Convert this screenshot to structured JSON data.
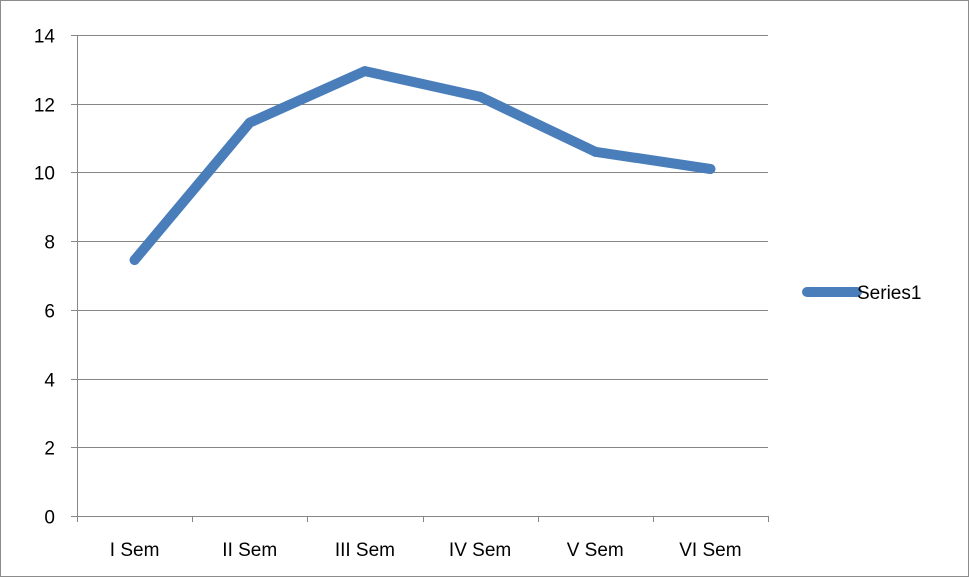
{
  "chart_data": {
    "type": "line",
    "categories": [
      "I Sem",
      "II Sem",
      "III Sem",
      "IV Sem",
      "V Sem",
      "VI Sem"
    ],
    "series": [
      {
        "name": "Series1",
        "values": [
          7.45,
          11.45,
          12.95,
          12.2,
          10.6,
          10.1
        ],
        "color": "#4a7ebb"
      }
    ],
    "ylim": [
      0,
      14
    ],
    "yticks": [
      0,
      2,
      4,
      6,
      8,
      10,
      12,
      14
    ],
    "grid": true,
    "legend": "right",
    "title": "",
    "xlabel": "",
    "ylabel": ""
  }
}
